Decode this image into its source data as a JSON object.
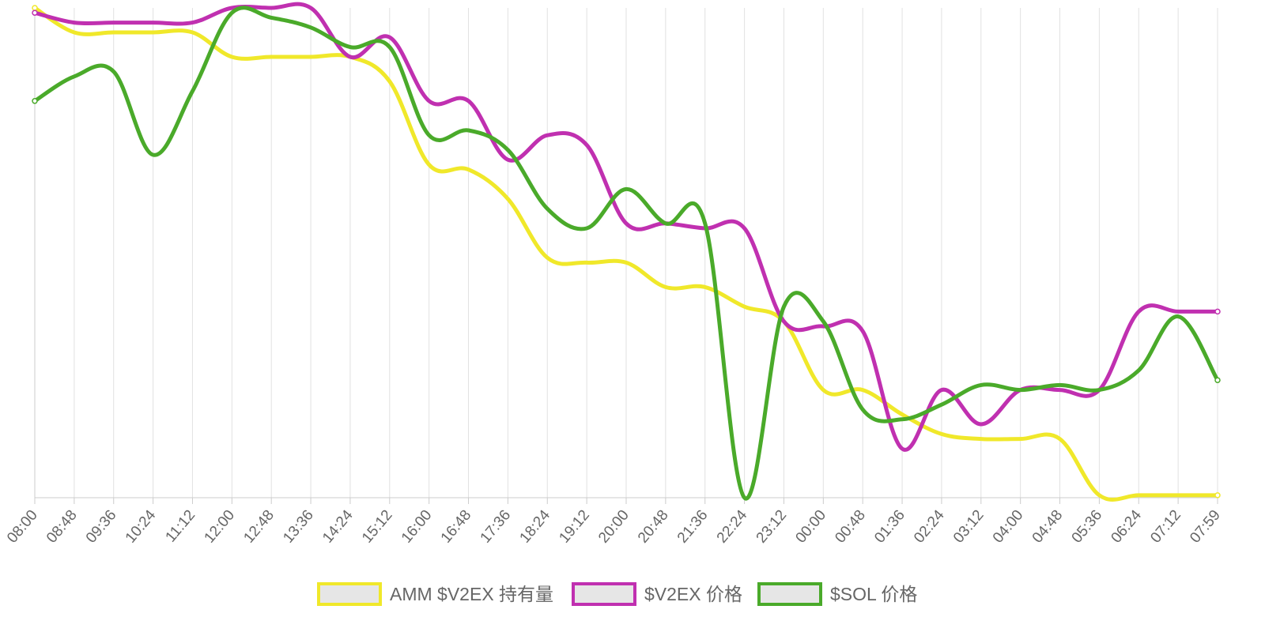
{
  "chart_data": {
    "type": "line",
    "grid": true,
    "legend_position": "bottom",
    "x": [
      "08:00",
      "08:48",
      "09:36",
      "10:24",
      "11:12",
      "12:00",
      "12:48",
      "13:36",
      "14:24",
      "15:12",
      "16:00",
      "16:48",
      "17:36",
      "18:24",
      "19:12",
      "20:00",
      "20:48",
      "21:36",
      "22:24",
      "23:12",
      "00:00",
      "00:48",
      "01:36",
      "02:24",
      "03:12",
      "04:00",
      "04:48",
      "05:36",
      "06:24",
      "07:12",
      "07:59"
    ],
    "ylim": [
      0,
      100
    ],
    "series": [
      {
        "name": "AMM $V2EX 持有量",
        "color": "#f0e82a",
        "values": [
          100,
          95,
          95,
          95,
          95,
          90,
          90,
          90,
          90,
          85,
          68,
          67,
          61,
          49,
          48,
          48,
          43,
          43,
          39,
          36,
          22,
          22,
          17,
          13,
          12,
          12,
          12,
          0.5,
          0.5,
          0.5,
          0.5
        ]
      },
      {
        "name": "$V2EX 价格",
        "color": "#c030b0",
        "values": [
          99,
          97,
          97,
          97,
          97,
          100,
          100,
          100,
          90,
          94,
          81,
          81,
          69,
          74,
          72,
          56,
          56,
          55,
          55,
          36,
          35,
          34,
          10,
          22,
          15,
          22,
          22,
          22,
          38,
          38,
          38
        ]
      },
      {
        "name": "$SOL 价格",
        "color": "#4aaa2a",
        "values": [
          81,
          86,
          87,
          70,
          83,
          99,
          98,
          96,
          92,
          92,
          74,
          75,
          71,
          59,
          55,
          63,
          56,
          56,
          0,
          39,
          36,
          18,
          16,
          19,
          23,
          22,
          23,
          22,
          26,
          37,
          24
        ]
      }
    ]
  }
}
